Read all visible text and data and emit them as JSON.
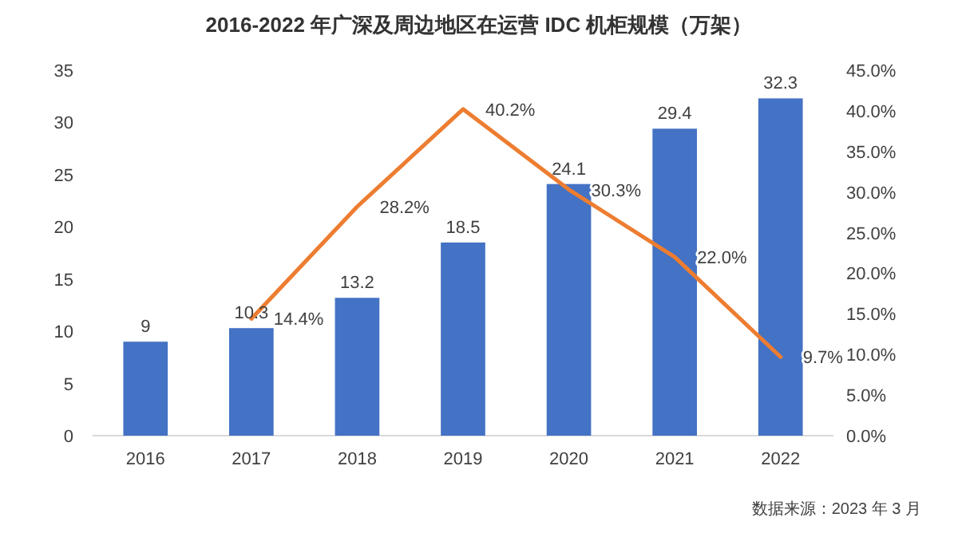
{
  "chart_data": {
    "type": "bar",
    "title": "2016-2022 年广深及周边地区在运营 IDC 机柜规模（万架）",
    "categories": [
      "2016",
      "2017",
      "2018",
      "2019",
      "2020",
      "2021",
      "2022"
    ],
    "series": [
      {
        "color": "#4472c4",
        "values": [
          9,
          10.3,
          13.2,
          18.5,
          24.1,
          29.4,
          32.3
        ],
        "value_labels": [
          "9",
          "10.3",
          "13.2",
          "18.5",
          "24.1",
          "29.4",
          "32.3"
        ]
      },
      {
        "type": "line",
        "axis": "y2",
        "color": "#ed7d31",
        "values": [
          null,
          14.4,
          28.2,
          40.2,
          30.3,
          22.0,
          9.7
        ],
        "value_labels": [
          null,
          "14.4%",
          "28.2%",
          "40.2%",
          "30.3%",
          "22.0%",
          "9.7%"
        ]
      }
    ],
    "ylim": [
      0,
      35
    ],
    "yticks": [
      0,
      5,
      10,
      15,
      20,
      25,
      30,
      35
    ],
    "y2lim": [
      0,
      45
    ],
    "y2ticks": [
      {
        "value": 0,
        "label": "0.0%"
      },
      {
        "value": 5,
        "label": "5.0%"
      },
      {
        "value": 10,
        "label": "10.0%"
      },
      {
        "value": 15,
        "label": "15.0%"
      },
      {
        "value": 20,
        "label": "20.0%"
      },
      {
        "value": 25,
        "label": "25.0%"
      },
      {
        "value": 30,
        "label": "30.0%"
      },
      {
        "value": 35,
        "label": "35.0%"
      },
      {
        "value": 40,
        "label": "40.0%"
      },
      {
        "value": 45,
        "label": "45.0%"
      }
    ],
    "annotations": [
      "数据来源：2023 年 3 月"
    ]
  }
}
